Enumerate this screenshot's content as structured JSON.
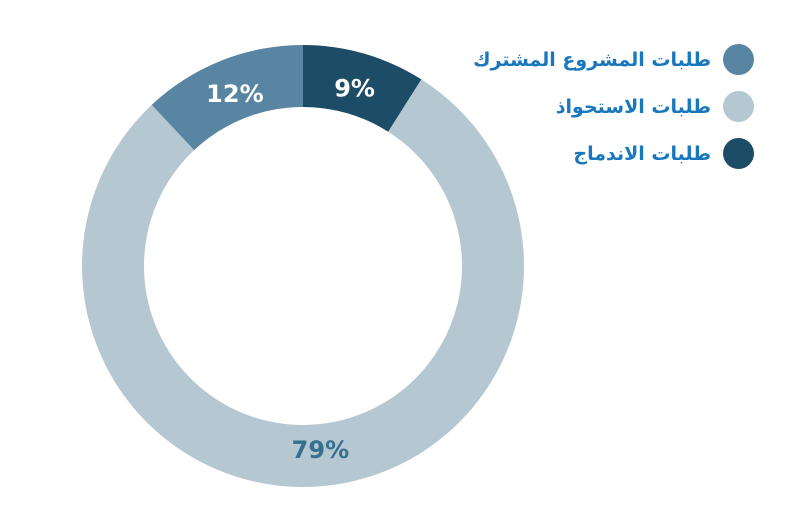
{
  "chart_data": {
    "type": "pie",
    "subtype": "donut",
    "title": "",
    "start_angle_deg": 0,
    "direction": "clockwise",
    "outer_radius": 221,
    "inner_radius": 159,
    "value_label_radius": 185,
    "segments": [
      {
        "slug": "merger-requests",
        "label": "طلبات الاندماج",
        "value": 9,
        "display": "9%",
        "color": "#1D4C66",
        "value_label_color": "#FFFFFF"
      },
      {
        "slug": "acquisition-requests",
        "label": "طلبات الاستحواذ",
        "value": 79,
        "display": "79%",
        "color": "#B5C7D1",
        "value_label_color": "#366F90"
      },
      {
        "slug": "joint-venture-requests",
        "label": "طلبات المشروع المشترك",
        "value": 12,
        "display": "12%",
        "color": "#5885A2",
        "value_label_color": "#FFFFFF"
      }
    ]
  },
  "legend": {
    "position": "top-right",
    "text_color": "#1877BD",
    "items": [
      {
        "slug": "joint-venture-requests",
        "label": "طلبات المشروع المشترك",
        "color": "#5885A2"
      },
      {
        "slug": "acquisition-requests",
        "label": "طلبات الاستحواذ",
        "color": "#B5C7D1"
      },
      {
        "slug": "merger-requests",
        "label": "طلبات الاندماج",
        "color": "#1D4C66"
      }
    ]
  }
}
